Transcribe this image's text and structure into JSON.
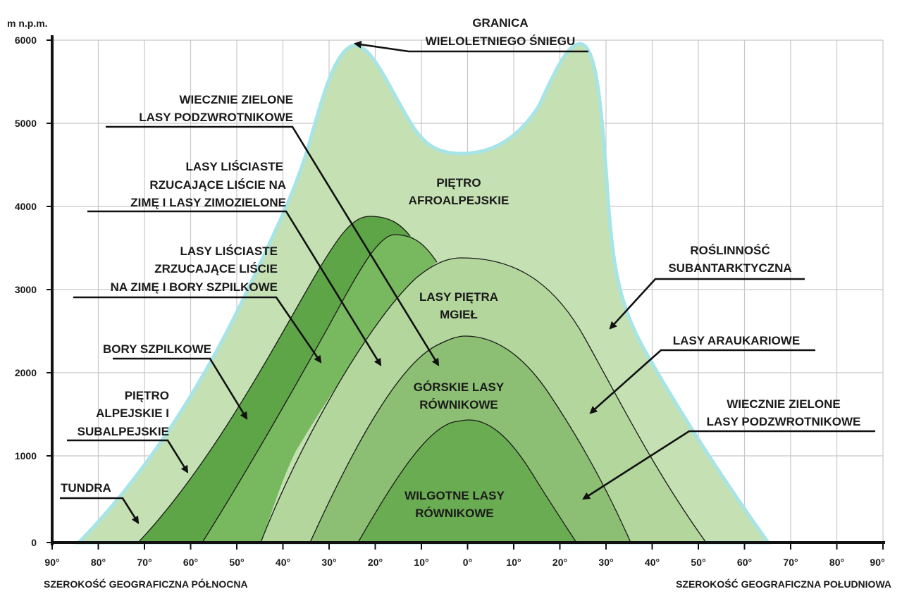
{
  "axis": {
    "y_unit": "m n.p.m.",
    "y_ticks": [
      "0",
      "1000",
      "2000",
      "3000",
      "4000",
      "5000",
      "6000"
    ],
    "x_ticks": [
      "90°",
      "80°",
      "70°",
      "60°",
      "50°",
      "40°",
      "30°",
      "20°",
      "10°",
      "0°",
      "10°",
      "20°",
      "30°",
      "40°",
      "50°",
      "60°",
      "70°",
      "80°",
      "90°"
    ],
    "x_label_left": "SZEROKOŚĆ GEOGRAFICZNA PÓŁNOCNA",
    "x_label_right": "SZEROKOŚĆ GEOGRAFICZNA POŁUDNIOWA"
  },
  "zones": {
    "afroalpine": [
      "PIĘTRO",
      "AFROALPEJSKIE"
    ],
    "cloud_forest": [
      "LASY PIĘTRA",
      "MGIEŁ"
    ],
    "montane": [
      "GÓRSKIE LASY",
      "RÓWNIKOWE"
    ],
    "lowland": [
      "WILGOTNE LASY",
      "RÓWNIKOWE"
    ]
  },
  "callouts": {
    "snowline": [
      "GRANICA",
      "WIELOLETNIEGO ŚNIEGU"
    ],
    "evergreen_north": [
      "WIECZNIE ZIELONE",
      "LASY PODZWROTNIKOWE"
    ],
    "deciduous_semi": [
      "LASY LIŚCIASTE",
      "RZUCAJĄCE LIŚCIE NA",
      "ZIMĘ I LASY ZIMOZIELONE"
    ],
    "deciduous_coniferous": [
      "LASY LIŚCIASTE",
      "ZRZUCAJĄCE  LIŚCIE",
      "NA ZIMĘ I BORY SZPILKOWE"
    ],
    "coniferous": [
      "BORY SZPILKOWE"
    ],
    "alpine": [
      "PIĘTRO",
      "ALPEJSKIE I",
      "SUBALPEJSKIE"
    ],
    "tundra": [
      "TUNDRA"
    ],
    "subantarctic": [
      "ROŚLINNOŚĆ",
      "SUBANTARKTYCZNA"
    ],
    "araucaria": [
      "LASY ARAUKARIOWE"
    ],
    "evergreen_south": [
      "WIECZNIE ZIELONE",
      "LASY PODZWROTNIKOWE"
    ]
  },
  "colors": {
    "light_green": "#c5e1b4",
    "mid_light_green": "#b3d69d",
    "mid_green": "#8cbf73",
    "dark_green": "#6aac52",
    "band_dark": "#5ea547",
    "band_mid": "#78b85e",
    "snow_outline": "#a7e4e6"
  }
}
